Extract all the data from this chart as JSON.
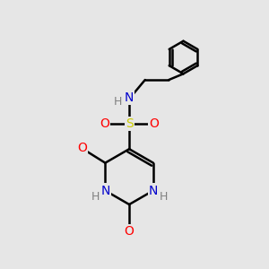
{
  "background_color": "#e6e6e6",
  "bond_color": "#000000",
  "atom_colors": {
    "N": "#0000cc",
    "O": "#ff0000",
    "S": "#cccc00",
    "H": "#808080",
    "C": "#000000"
  },
  "bond_width": 1.8,
  "figsize": [
    3.0,
    3.0
  ],
  "dpi": 100
}
